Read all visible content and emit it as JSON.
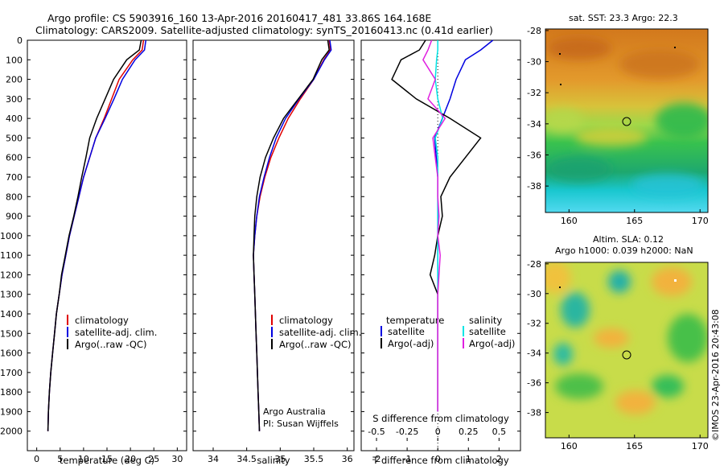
{
  "header": {
    "line1": "Argo profile: CS 5903916_160 13-Apr-2016 20160417_481 33.86S 164.168E",
    "line2": "Climatology: CARS2009. Satellite-adjusted climatology: synTS_20160413.nc (0.41d earlier)"
  },
  "colors": {
    "climatology": "#e00000",
    "satellite": "#0000e0",
    "argo": "#000000",
    "sal_satellite": "#00e5e5",
    "argo_adj": "#e020e0"
  },
  "depth_ticks": [
    "0",
    "100",
    "200",
    "300",
    "400",
    "500",
    "600",
    "700",
    "800",
    "900",
    "1000",
    "1100",
    "1200",
    "1300",
    "1400",
    "1500",
    "1600",
    "1700",
    "1800",
    "1900",
    "2000"
  ],
  "legend_basic": {
    "climatology": "climatology",
    "satellite": "satellite-adj. clim.",
    "argo": "Argo(..raw -QC)"
  },
  "legend_diff": {
    "temperature": "temperature",
    "salinity": "salinity",
    "satellite": "satellite",
    "argo_adj": "Argo(-adj)"
  },
  "credit": {
    "line1": "Argo Australia",
    "line2": "PI: Susan Wijffels"
  },
  "map_top": {
    "title": "sat. SST: 23.3 Argo: 22.3",
    "lat_ticks": [
      "-28",
      "-30",
      "-32",
      "-34",
      "-36",
      "-38"
    ],
    "lon_ticks": [
      "160",
      "165",
      "170"
    ]
  },
  "map_bottom": {
    "title1": "Altim. SLA: 0.12",
    "title2": "Argo h1000: 0.039 h2000: NaN",
    "lat_ticks": [
      "-28",
      "-30",
      "-32",
      "-34",
      "-36",
      "-38"
    ],
    "lon_ticks": [
      "160",
      "165",
      "170"
    ],
    "stamp": "©IMOS 23-Apr-2016 20:43:08"
  },
  "chart_data": [
    {
      "type": "line",
      "xlabel": "temperature (deg C)",
      "ylabel": "",
      "xlim": [
        -2,
        32
      ],
      "ylim": [
        2100,
        0
      ],
      "x_ticks": [
        "0",
        "5",
        "10",
        "15",
        "20",
        "25",
        "30"
      ],
      "series": [
        {
          "name": "climatology",
          "x": [
            22.8,
            22.5,
            20.5,
            17.6,
            16.0,
            14.4,
            12.6,
            11.3,
            10.0,
            9.0,
            8.0,
            7.0,
            6.2,
            5.4,
            4.8,
            4.2,
            3.8,
            3.4,
            3.0,
            2.7,
            2.5,
            2.4
          ],
          "y": [
            0,
            50,
            100,
            200,
            300,
            400,
            500,
            600,
            700,
            800,
            900,
            1000,
            1100,
            1200,
            1300,
            1400,
            1500,
            1600,
            1700,
            1800,
            1900,
            2000
          ]
        },
        {
          "name": "satellite-adj. clim.",
          "x": [
            23.3,
            23.0,
            21.0,
            18.3,
            16.5,
            14.6,
            12.6,
            11.3,
            10.0,
            9.0,
            8.0,
            7.0,
            6.2,
            5.4,
            4.8,
            4.2,
            3.8,
            3.4,
            3.0,
            2.7,
            2.5,
            2.4
          ],
          "y": [
            0,
            50,
            100,
            200,
            300,
            400,
            500,
            600,
            700,
            800,
            900,
            1000,
            1100,
            1200,
            1300,
            1400,
            1500,
            1600,
            1700,
            1800,
            1900,
            2000
          ]
        },
        {
          "name": "Argo(..raw -QC)",
          "x": [
            22.3,
            21.9,
            19.2,
            16.4,
            14.6,
            12.8,
            11.3,
            10.5,
            9.6,
            8.8,
            7.9,
            6.9,
            6.1,
            5.3,
            4.8,
            4.2,
            3.8,
            3.4,
            3.0,
            2.7,
            2.5,
            2.4
          ],
          "y": [
            0,
            50,
            100,
            200,
            300,
            400,
            500,
            600,
            700,
            800,
            900,
            1000,
            1100,
            1200,
            1300,
            1400,
            1500,
            1600,
            1700,
            1800,
            1900,
            2000
          ]
        }
      ]
    },
    {
      "type": "line",
      "xlabel": "salinity",
      "ylabel": "",
      "xlim": [
        33.7,
        36.1
      ],
      "ylim": [
        2100,
        0
      ],
      "x_ticks": [
        "34",
        "34.5",
        "35",
        "35.5",
        "36"
      ],
      "series": [
        {
          "name": "climatology",
          "x": [
            35.73,
            35.75,
            35.65,
            35.5,
            35.3,
            35.12,
            34.98,
            34.86,
            34.77,
            34.7,
            34.65,
            34.62,
            34.6,
            34.61,
            34.62,
            34.63,
            34.64,
            34.65,
            34.66,
            34.67,
            34.68,
            34.69
          ],
          "y": [
            0,
            50,
            100,
            200,
            300,
            400,
            500,
            600,
            700,
            800,
            900,
            1000,
            1100,
            1200,
            1300,
            1400,
            1500,
            1600,
            1700,
            1800,
            1900,
            2000
          ]
        },
        {
          "name": "satellite-adj. clim.",
          "x": [
            35.74,
            35.76,
            35.66,
            35.5,
            35.28,
            35.08,
            34.94,
            34.84,
            34.76,
            34.69,
            34.65,
            34.62,
            34.6,
            34.61,
            34.62,
            34.63,
            34.64,
            34.65,
            34.66,
            34.67,
            34.68,
            34.69
          ],
          "y": [
            0,
            50,
            100,
            200,
            300,
            400,
            500,
            600,
            700,
            800,
            900,
            1000,
            1100,
            1200,
            1300,
            1400,
            1500,
            1600,
            1700,
            1800,
            1900,
            2000
          ]
        },
        {
          "name": "Argo(..raw -QC)",
          "x": [
            35.71,
            35.73,
            35.62,
            35.49,
            35.27,
            35.05,
            34.9,
            34.78,
            34.7,
            34.65,
            34.62,
            34.61,
            34.6,
            34.61,
            34.62,
            34.63,
            34.64,
            34.65,
            34.66,
            34.67,
            34.68,
            34.69
          ],
          "y": [
            0,
            50,
            100,
            200,
            300,
            400,
            500,
            600,
            700,
            800,
            900,
            1000,
            1100,
            1200,
            1300,
            1400,
            1500,
            1600,
            1700,
            1800,
            1900,
            2000
          ]
        }
      ]
    },
    {
      "type": "line",
      "xlabel": "T difference from climatology",
      "xlabel_top": "S difference from climatology",
      "ylabel": "",
      "xlim": [
        -2.5,
        2.7
      ],
      "ylim": [
        2100,
        0
      ],
      "x_ticks": [
        "-2",
        "-1",
        "0",
        "1",
        "2"
      ],
      "x_ticks_top": [
        "-0.5",
        "-0.25",
        "0",
        "0.25",
        "0.5"
      ],
      "series": [
        {
          "name": "temperature satellite",
          "x": [
            1.8,
            1.4,
            0.9,
            0.6,
            0.4,
            0.15,
            -0.1,
            -0.05,
            0.0,
            0.0,
            0.0,
            0.0,
            0.0,
            0.0,
            0.0,
            0.0,
            0.0,
            0.0,
            0.0,
            0.0,
            0.0
          ],
          "y": [
            0,
            50,
            100,
            200,
            300,
            400,
            500,
            600,
            700,
            800,
            900,
            1000,
            1100,
            1200,
            1300,
            1400,
            1500,
            1600,
            1700,
            1800,
            1900
          ]
        },
        {
          "name": "temperature Argo(-adj)",
          "x": [
            -0.4,
            -0.6,
            -1.2,
            -1.5,
            -0.7,
            0.4,
            1.4,
            0.9,
            0.4,
            0.1,
            0.15,
            0.0,
            -0.1,
            -0.25,
            0.0,
            0.0,
            0.0,
            0.0,
            0.0,
            0.0,
            0.0
          ],
          "y": [
            0,
            50,
            100,
            200,
            300,
            400,
            500,
            600,
            700,
            800,
            900,
            1000,
            1100,
            1200,
            1300,
            1400,
            1500,
            1600,
            1700,
            1800,
            1900
          ]
        },
        {
          "name": "salinity satellite",
          "x": [
            0.0,
            0.0,
            -0.01,
            -0.02,
            0.0,
            0.04,
            -0.02,
            0.0,
            0.0,
            0.0,
            0.0,
            0.0,
            0.0,
            0.0,
            0.0,
            0.0,
            0.0,
            0.0,
            0.0,
            0.0,
            0.0
          ],
          "y": [
            0,
            50,
            100,
            200,
            300,
            400,
            500,
            600,
            700,
            800,
            900,
            1000,
            1100,
            1200,
            1300,
            1400,
            1500,
            1600,
            1700,
            1800,
            1900
          ]
        },
        {
          "name": "salinity Argo(-adj)",
          "x": [
            -0.05,
            -0.08,
            -0.12,
            -0.02,
            -0.08,
            0.06,
            -0.04,
            -0.02,
            0.0,
            0.0,
            0.01,
            0.0,
            0.02,
            0.01,
            0.0,
            0.0,
            0.0,
            0.0,
            0.0,
            0.0,
            0.0
          ],
          "y": [
            0,
            50,
            100,
            200,
            300,
            400,
            500,
            600,
            700,
            800,
            900,
            1000,
            1100,
            1200,
            1300,
            1400,
            1500,
            1600,
            1700,
            1800,
            1900
          ]
        }
      ]
    }
  ]
}
